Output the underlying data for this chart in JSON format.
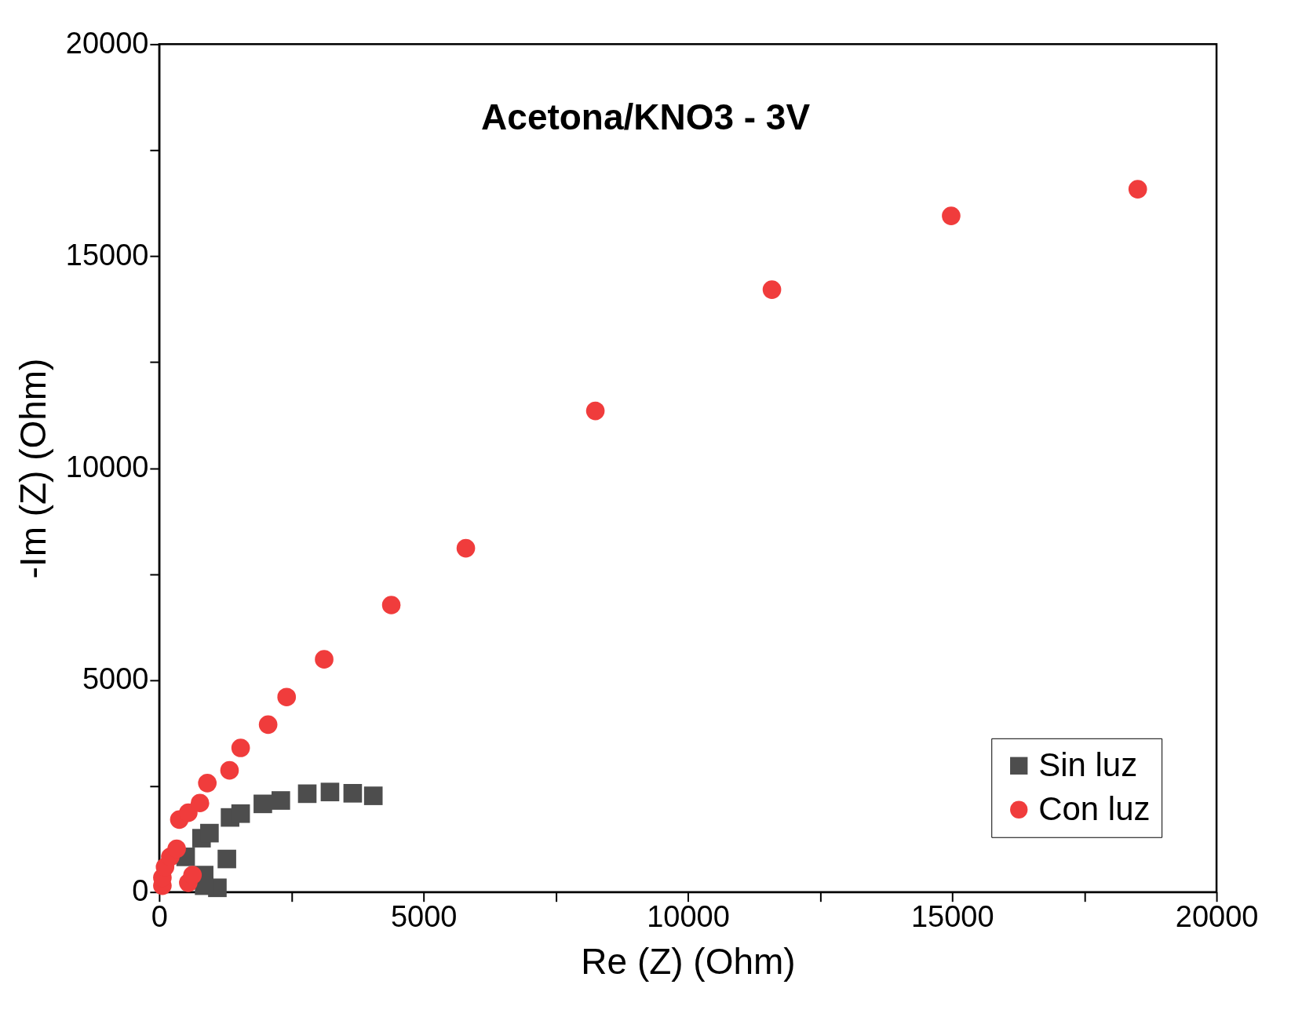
{
  "chart_data": {
    "type": "scatter",
    "title": "Acetona/KNO3 - 3V",
    "xlabel": "Re (Z) (Ohm)",
    "ylabel": "-Im (Z) (Ohm)",
    "xlim": [
      0,
      20000
    ],
    "ylim": [
      0,
      20000
    ],
    "xticks": [
      0,
      {
        "value": 2500,
        "label": null
      },
      5000,
      {
        "value": 7500,
        "label": null
      },
      10000,
      {
        "value": 12500,
        "label": null
      },
      15000,
      {
        "value": 17500,
        "label": null
      },
      20000
    ],
    "yticks": [
      0,
      {
        "value": 2500,
        "label": null
      },
      5000,
      {
        "value": 7500,
        "label": null
      },
      10000,
      {
        "value": 12500,
        "label": null
      },
      15000,
      {
        "value": 17500,
        "label": null
      },
      20000
    ],
    "grid": false,
    "legend": "bottom right",
    "series": [
      {
        "name": "Sin luz",
        "color": "#4d4d4d",
        "marker": "square",
        "x": [
          1100,
          850,
          850,
          1280,
          500,
          800,
          950,
          1340,
          1540,
          1960,
          2300,
          2800,
          3230,
          3660,
          4050
        ],
        "values": [
          100,
          150,
          400,
          780,
          830,
          1270,
          1390,
          1760,
          1850,
          2080,
          2160,
          2320,
          2360,
          2330,
          2270
        ]
      },
      {
        "name": "Con luz",
        "color": "#f03c3c",
        "marker": "circle",
        "x": [
          60,
          60,
          110,
          210,
          330,
          550,
          630,
          380,
          550,
          770,
          910,
          1330,
          1540,
          2060,
          2410,
          3120,
          4390,
          5800,
          8250,
          11590,
          14980,
          18510
        ],
        "values": [
          150,
          340,
          590,
          830,
          1020,
          220,
          400,
          1710,
          1870,
          2100,
          2570,
          2870,
          3400,
          3950,
          4600,
          5490,
          6770,
          8110,
          11350,
          14210,
          15950,
          16580
        ]
      }
    ]
  }
}
